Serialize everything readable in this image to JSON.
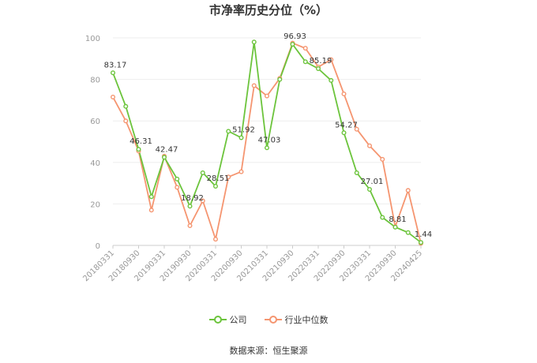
{
  "chart_data": {
    "type": "line",
    "title": "市净率历史分位（%）",
    "source": "数据来源：恒生聚源",
    "ylim": [
      0,
      100
    ],
    "yticks": [
      0,
      20,
      40,
      60,
      80,
      100
    ],
    "grid": true,
    "legend_position": "bottom",
    "xtick_labels": [
      "20180331",
      "20180930",
      "20190331",
      "20190930",
      "20200331",
      "20200930",
      "20210331",
      "20210930",
      "20220331",
      "20220930",
      "20230331",
      "20230930",
      "20240425"
    ],
    "x": [
      "20180331",
      "20180630",
      "20180930",
      "20181231",
      "20190331",
      "20190630",
      "20190930",
      "20191231",
      "20200331",
      "20200630",
      "20200930",
      "20201231",
      "20210331",
      "20210630",
      "20210930",
      "20211231",
      "20220331",
      "20220630",
      "20220930",
      "20221231",
      "20230331",
      "20230630",
      "20230930",
      "20231231",
      "20240425"
    ],
    "series": [
      {
        "name": "公司",
        "color": "#6cc43c",
        "values": [
          83.17,
          67,
          46.31,
          23.5,
          42.47,
          32,
          18.92,
          35,
          28.51,
          55,
          51.92,
          98,
          47.03,
          80,
          96.93,
          88.5,
          85.19,
          79.5,
          54.27,
          35,
          27.01,
          13.5,
          8.81,
          6.2,
          1.44
        ],
        "labels": {
          "0": "83.17",
          "2": "46.31",
          "4": "42.47",
          "6": "18.92",
          "8": "28.51",
          "10": "51.92",
          "12": "47.03",
          "14": "96.93",
          "16": "85.19",
          "18": "54.27",
          "20": "27.01",
          "22": "8.81",
          "24": "1.44"
        }
      },
      {
        "name": "行业中位数",
        "color": "#f59570",
        "values": [
          71.5,
          60,
          45.5,
          17,
          43,
          28,
          9.5,
          21.5,
          3,
          33,
          35.5,
          77,
          72,
          80.5,
          97.5,
          95,
          86,
          89.5,
          73,
          56,
          48,
          41.5,
          9,
          26.5,
          1
        ]
      }
    ]
  }
}
